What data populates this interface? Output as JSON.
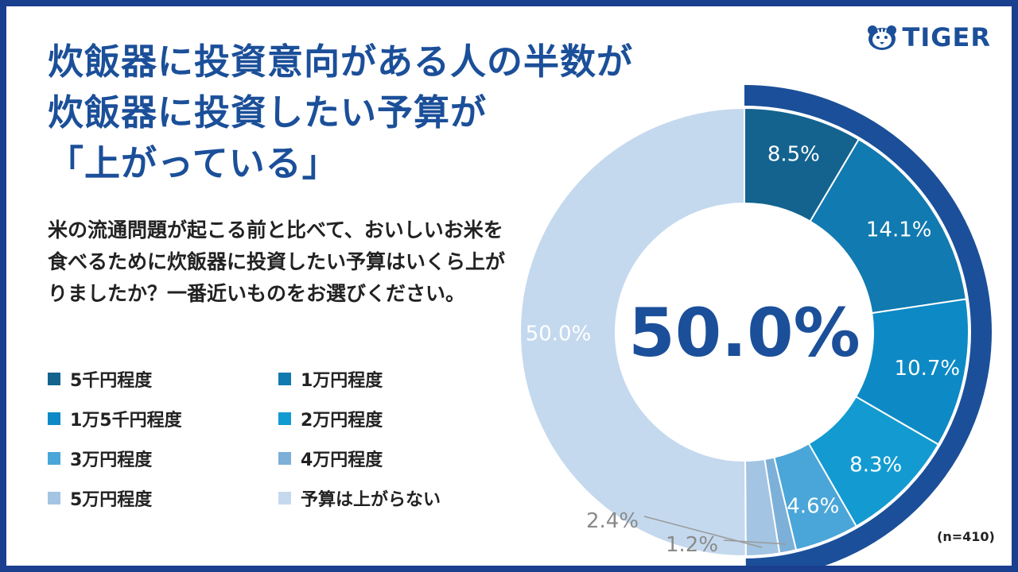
{
  "title": {
    "line1": "炊飯器に投資意向がある人の半数が",
    "line2": "炊飯器に投資したい予算が",
    "line3": "「上がっている」"
  },
  "question": "米の流通問題が起こる前と比べて、おいしいお米を食べるために炊飯器に投資したい予算はいくら上がりましたか？一番近いものをお選びください。",
  "logo": {
    "text": "TIGER",
    "icon": "tiger-face-icon"
  },
  "sample_size": "(n=410)",
  "chart_data": {
    "type": "pie",
    "donut": true,
    "center_label": "50.0%",
    "categories": [
      "5千円程度",
      "1万円程度",
      "1万5千円程度",
      "2万円程度",
      "3万円程度",
      "4万円程度",
      "5万円程度",
      "予算は上がらない"
    ],
    "values": [
      8.5,
      14.1,
      10.7,
      8.3,
      4.6,
      1.2,
      2.4,
      50.0
    ],
    "labels": [
      "8.5%",
      "14.1%",
      "10.7%",
      "8.3%",
      "4.6%",
      "1.2%",
      "2.4%",
      "50.0%"
    ],
    "colors": [
      "#14638f",
      "#117ab0",
      "#0d8ac5",
      "#139bd1",
      "#4aa6d8",
      "#7cb0d8",
      "#a3c4e2",
      "#c4d9ee"
    ],
    "highlight_arc_color": "#1b4f99",
    "legend_position": "left",
    "unit": "%"
  }
}
